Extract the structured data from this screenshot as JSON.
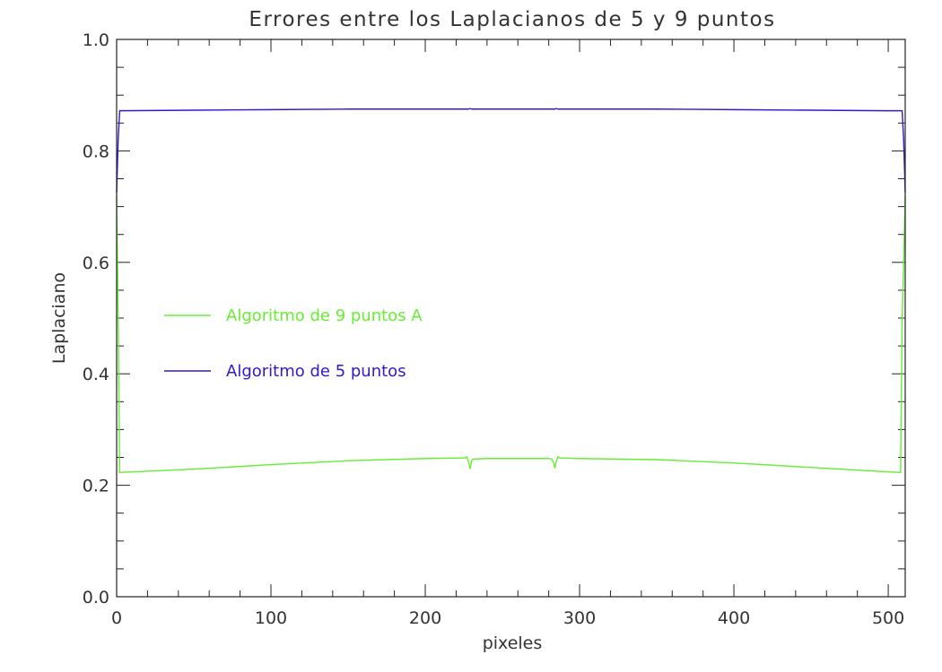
{
  "chart_data": {
    "type": "line",
    "title": "Errores entre los Laplacianos de 5 y 9 puntos",
    "xlabel": "pixeles",
    "ylabel": "Laplaciano",
    "xlim": [
      0,
      511
    ],
    "ylim": [
      0.0,
      1.0
    ],
    "x_major_ticks": [
      0,
      100,
      200,
      300,
      400,
      500
    ],
    "x_tick_labels": [
      "0",
      "100",
      "200",
      "300",
      "400",
      "500"
    ],
    "x_minor_step": 20,
    "y_major_ticks": [
      0.0,
      0.2,
      0.4,
      0.6,
      0.8,
      1.0
    ],
    "y_tick_labels": [
      "0.0",
      "0.2",
      "0.4",
      "0.6",
      "0.8",
      "1.0"
    ],
    "y_minor_step": 0.05,
    "grid": false,
    "legend_position": "center-left",
    "series": [
      {
        "name": "Algoritmo de 9 puntos A",
        "color": "#66ee33",
        "x": [
          0,
          1,
          2,
          50,
          100,
          150,
          200,
          226,
          227,
          228,
          229,
          230,
          231,
          240,
          260,
          280,
          282,
          283,
          284,
          285,
          286,
          287,
          300,
          350,
          400,
          450,
          500,
          508,
          509,
          510,
          511
        ],
        "y": [
          0.72,
          0.5,
          0.223,
          0.229,
          0.237,
          0.244,
          0.248,
          0.249,
          0.251,
          0.242,
          0.23,
          0.244,
          0.247,
          0.248,
          0.248,
          0.248,
          0.247,
          0.242,
          0.231,
          0.244,
          0.251,
          0.249,
          0.248,
          0.246,
          0.24,
          0.232,
          0.224,
          0.223,
          0.5,
          0.6,
          0.72
        ]
      },
      {
        "name": "Algoritmo de 5 puntos",
        "color": "#3318cc",
        "x": [
          0,
          1,
          2,
          50,
          100,
          150,
          200,
          228,
          229,
          230,
          240,
          260,
          280,
          284,
          285,
          286,
          300,
          350,
          400,
          450,
          500,
          509,
          510,
          511
        ],
        "y": [
          0.725,
          0.82,
          0.872,
          0.873,
          0.874,
          0.875,
          0.875,
          0.875,
          0.876,
          0.875,
          0.875,
          0.875,
          0.875,
          0.875,
          0.876,
          0.875,
          0.875,
          0.875,
          0.874,
          0.873,
          0.872,
          0.872,
          0.82,
          0.725
        ]
      }
    ]
  }
}
